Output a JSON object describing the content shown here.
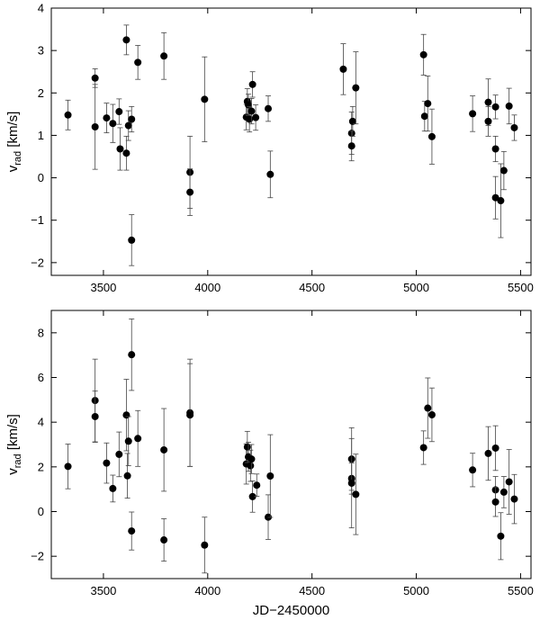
{
  "chart_data": [
    {
      "type": "scatter",
      "title": "",
      "xlabel": "",
      "ylabel": "v_rad [km/s]",
      "ylabel_main": "v",
      "ylabel_sub": "rad",
      "ylabel_unit": " [km/s]",
      "xlim": [
        3250,
        5550
      ],
      "ylim": [
        -2.3,
        4.0
      ],
      "xticks": [
        3500,
        4000,
        4500,
        5000,
        5500
      ],
      "yticks": [
        -2,
        -1,
        0,
        1,
        2,
        3,
        4
      ],
      "grid": false,
      "legend": "none",
      "marker_color": "#000000",
      "points": [
        {
          "x": 3330,
          "y": 1.48,
          "err": 0.35
        },
        {
          "x": 3460,
          "y": 2.35,
          "err": 0.22
        },
        {
          "x": 3460,
          "y": 1.2,
          "err": 1.0
        },
        {
          "x": 3515,
          "y": 1.41,
          "err": 0.35
        },
        {
          "x": 3545,
          "y": 1.28,
          "err": 0.45
        },
        {
          "x": 3575,
          "y": 1.56,
          "err": 0.3
        },
        {
          "x": 3580,
          "y": 0.68,
          "err": 0.5
        },
        {
          "x": 3610,
          "y": 0.58,
          "err": 0.4
        },
        {
          "x": 3610,
          "y": 3.25,
          "err": 0.35
        },
        {
          "x": 3620,
          "y": 1.23,
          "err": 0.35
        },
        {
          "x": 3635,
          "y": 1.38,
          "err": 0.3
        },
        {
          "x": 3635,
          "y": -1.47,
          "err": 0.6
        },
        {
          "x": 3665,
          "y": 2.72,
          "err": 0.4
        },
        {
          "x": 3790,
          "y": 2.87,
          "err": 0.55
        },
        {
          "x": 3915,
          "y": 0.13,
          "err": 0.85
        },
        {
          "x": 3915,
          "y": -0.34,
          "err": 0.55
        },
        {
          "x": 3985,
          "y": 1.85,
          "err": 1.0
        },
        {
          "x": 4185,
          "y": 1.43,
          "err": 0.3
        },
        {
          "x": 4190,
          "y": 1.8,
          "err": 0.3
        },
        {
          "x": 4195,
          "y": 1.72,
          "err": 0.25
        },
        {
          "x": 4200,
          "y": 1.38,
          "err": 0.3
        },
        {
          "x": 4210,
          "y": 1.57,
          "err": 0.3
        },
        {
          "x": 4215,
          "y": 2.2,
          "err": 0.3
        },
        {
          "x": 4230,
          "y": 1.42,
          "err": 0.3
        },
        {
          "x": 4290,
          "y": 1.63,
          "err": 0.3
        },
        {
          "x": 4300,
          "y": 0.08,
          "err": 0.55
        },
        {
          "x": 4650,
          "y": 2.56,
          "err": 0.6
        },
        {
          "x": 4690,
          "y": 1.05,
          "err": 0.5
        },
        {
          "x": 4690,
          "y": 0.75,
          "err": 0.35
        },
        {
          "x": 4695,
          "y": 1.33,
          "err": 0.35
        },
        {
          "x": 4710,
          "y": 2.12,
          "err": 0.85
        },
        {
          "x": 5035,
          "y": 2.9,
          "err": 0.48
        },
        {
          "x": 5040,
          "y": 1.45,
          "err": 0.35
        },
        {
          "x": 5055,
          "y": 1.75,
          "err": 0.65
        },
        {
          "x": 5075,
          "y": 0.97,
          "err": 0.65
        },
        {
          "x": 5270,
          "y": 1.51,
          "err": 0.42
        },
        {
          "x": 5345,
          "y": 1.78,
          "err": 0.55
        },
        {
          "x": 5345,
          "y": 1.33,
          "err": 0.35
        },
        {
          "x": 5380,
          "y": 1.67,
          "err": 0.28
        },
        {
          "x": 5380,
          "y": 0.68,
          "err": 0.3
        },
        {
          "x": 5380,
          "y": -0.47,
          "err": 0.5
        },
        {
          "x": 5405,
          "y": -0.54,
          "err": 0.87
        },
        {
          "x": 5420,
          "y": 0.17,
          "err": 0.45
        },
        {
          "x": 5445,
          "y": 1.69,
          "err": 0.42
        },
        {
          "x": 5470,
          "y": 1.18,
          "err": 0.3
        }
      ]
    },
    {
      "type": "scatter",
      "title": "",
      "xlabel": "JD−2450000",
      "ylabel": "v_rad [km/s]",
      "ylabel_main": "v",
      "ylabel_sub": "rad",
      "ylabel_unit": " [km/s]",
      "xlim": [
        3250,
        5550
      ],
      "ylim": [
        -3.0,
        9.0
      ],
      "xticks": [
        3500,
        4000,
        4500,
        5000,
        5500
      ],
      "yticks": [
        -2,
        0,
        2,
        4,
        6,
        8
      ],
      "grid": false,
      "legend": "none",
      "marker_color": "#000000",
      "points": [
        {
          "x": 3330,
          "y": 2.02,
          "err": 1.0
        },
        {
          "x": 3460,
          "y": 4.97,
          "err": 1.85
        },
        {
          "x": 3460,
          "y": 4.25,
          "err": 1.15
        },
        {
          "x": 3515,
          "y": 2.17,
          "err": 0.9
        },
        {
          "x": 3545,
          "y": 1.03,
          "err": 0.6
        },
        {
          "x": 3575,
          "y": 2.56,
          "err": 1.0
        },
        {
          "x": 3610,
          "y": 4.32,
          "err": 1.6
        },
        {
          "x": 3615,
          "y": 1.6,
          "err": 1.0
        },
        {
          "x": 3620,
          "y": 3.15,
          "err": 1.1
        },
        {
          "x": 3635,
          "y": 7.02,
          "err": 1.6
        },
        {
          "x": 3635,
          "y": -0.87,
          "err": 0.85
        },
        {
          "x": 3665,
          "y": 3.27,
          "err": 1.25
        },
        {
          "x": 3790,
          "y": 2.76,
          "err": 1.85
        },
        {
          "x": 3790,
          "y": -1.27,
          "err": 0.95
        },
        {
          "x": 3915,
          "y": 4.42,
          "err": 2.4
        },
        {
          "x": 3915,
          "y": 4.32,
          "err": 2.3
        },
        {
          "x": 3985,
          "y": -1.5,
          "err": 1.25
        },
        {
          "x": 4185,
          "y": 2.13,
          "err": 0.9
        },
        {
          "x": 4190,
          "y": 2.89,
          "err": 0.7
        },
        {
          "x": 4195,
          "y": 2.45,
          "err": 0.65
        },
        {
          "x": 4205,
          "y": 2.05,
          "err": 0.7
        },
        {
          "x": 4210,
          "y": 2.35,
          "err": 0.65
        },
        {
          "x": 4215,
          "y": 0.67,
          "err": 0.7
        },
        {
          "x": 4235,
          "y": 1.18,
          "err": 0.5
        },
        {
          "x": 4290,
          "y": -0.25,
          "err": 1.0
        },
        {
          "x": 4300,
          "y": 1.59,
          "err": 1.85
        },
        {
          "x": 4690,
          "y": 2.35,
          "err": 1.4
        },
        {
          "x": 4690,
          "y": 1.48,
          "err": 0.7
        },
        {
          "x": 4690,
          "y": 1.27,
          "err": 2.0
        },
        {
          "x": 4710,
          "y": 0.77,
          "err": 1.8
        },
        {
          "x": 5035,
          "y": 2.86,
          "err": 0.75
        },
        {
          "x": 5055,
          "y": 4.63,
          "err": 1.35
        },
        {
          "x": 5075,
          "y": 4.33,
          "err": 1.2
        },
        {
          "x": 5270,
          "y": 1.86,
          "err": 0.75
        },
        {
          "x": 5345,
          "y": 2.6,
          "err": 1.2
        },
        {
          "x": 5380,
          "y": 2.84,
          "err": 1.0
        },
        {
          "x": 5380,
          "y": 0.97,
          "err": 0.6
        },
        {
          "x": 5380,
          "y": 0.43,
          "err": 0.65
        },
        {
          "x": 5405,
          "y": -1.1,
          "err": 1.05
        },
        {
          "x": 5420,
          "y": 0.87,
          "err": 0.7
        },
        {
          "x": 5445,
          "y": 1.33,
          "err": 1.45
        },
        {
          "x": 5470,
          "y": 0.56,
          "err": 1.1
        }
      ]
    }
  ]
}
